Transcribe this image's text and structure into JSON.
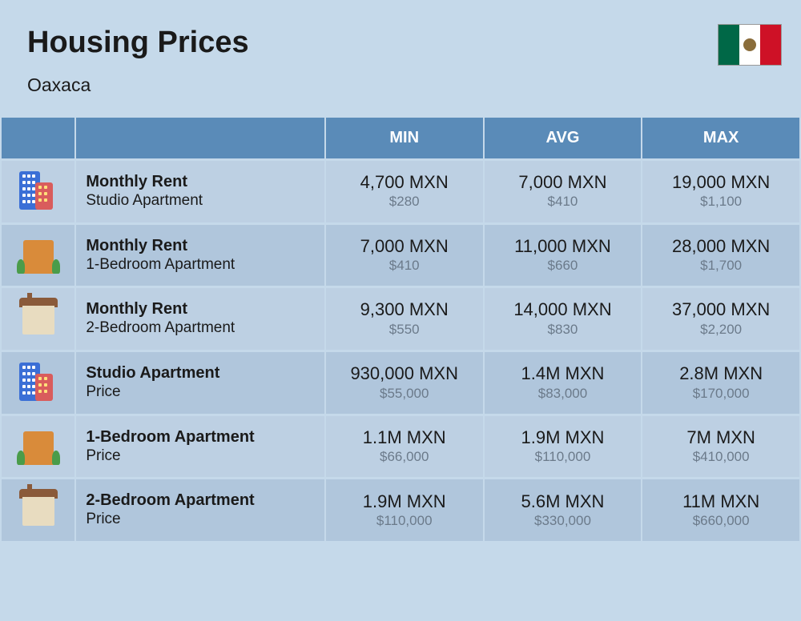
{
  "header": {
    "title": "Housing Prices",
    "subtitle": "Oaxaca"
  },
  "columns": [
    "MIN",
    "AVG",
    "MAX"
  ],
  "rows": [
    {
      "icon": "buildings",
      "label_bold": "Monthly Rent",
      "label_sub": "Studio Apartment",
      "shade": "light",
      "values": [
        {
          "mxn": "4,700 MXN",
          "usd": "$280"
        },
        {
          "mxn": "7,000 MXN",
          "usd": "$410"
        },
        {
          "mxn": "19,000 MXN",
          "usd": "$1,100"
        }
      ]
    },
    {
      "icon": "apartment",
      "label_bold": "Monthly Rent",
      "label_sub": "1-Bedroom Apartment",
      "shade": "dark",
      "values": [
        {
          "mxn": "7,000 MXN",
          "usd": "$410"
        },
        {
          "mxn": "11,000 MXN",
          "usd": "$660"
        },
        {
          "mxn": "28,000 MXN",
          "usd": "$1,700"
        }
      ]
    },
    {
      "icon": "house",
      "label_bold": "Monthly Rent",
      "label_sub": "2-Bedroom Apartment",
      "shade": "light",
      "values": [
        {
          "mxn": "9,300 MXN",
          "usd": "$550"
        },
        {
          "mxn": "14,000 MXN",
          "usd": "$830"
        },
        {
          "mxn": "37,000 MXN",
          "usd": "$2,200"
        }
      ]
    },
    {
      "icon": "buildings",
      "label_bold": "Studio Apartment",
      "label_sub": "Price",
      "shade": "dark",
      "values": [
        {
          "mxn": "930,000 MXN",
          "usd": "$55,000"
        },
        {
          "mxn": "1.4M MXN",
          "usd": "$83,000"
        },
        {
          "mxn": "2.8M MXN",
          "usd": "$170,000"
        }
      ]
    },
    {
      "icon": "apartment",
      "label_bold": "1-Bedroom Apartment",
      "label_sub": "Price",
      "shade": "light",
      "values": [
        {
          "mxn": "1.1M MXN",
          "usd": "$66,000"
        },
        {
          "mxn": "1.9M MXN",
          "usd": "$110,000"
        },
        {
          "mxn": "7M MXN",
          "usd": "$410,000"
        }
      ]
    },
    {
      "icon": "house",
      "label_bold": "2-Bedroom Apartment",
      "label_sub": "Price",
      "shade": "dark",
      "values": [
        {
          "mxn": "1.9M MXN",
          "usd": "$110,000"
        },
        {
          "mxn": "5.6M MXN",
          "usd": "$330,000"
        },
        {
          "mxn": "11M MXN",
          "usd": "$660,000"
        }
      ]
    }
  ],
  "colors": {
    "page_bg": "#c5d9ea",
    "header_bg": "#5a8bb8",
    "header_text": "#ffffff",
    "row_light": "#bdd0e3",
    "row_dark": "#b0c6dc",
    "text_main": "#1a1a1a",
    "text_sub": "#6b7a8a"
  }
}
